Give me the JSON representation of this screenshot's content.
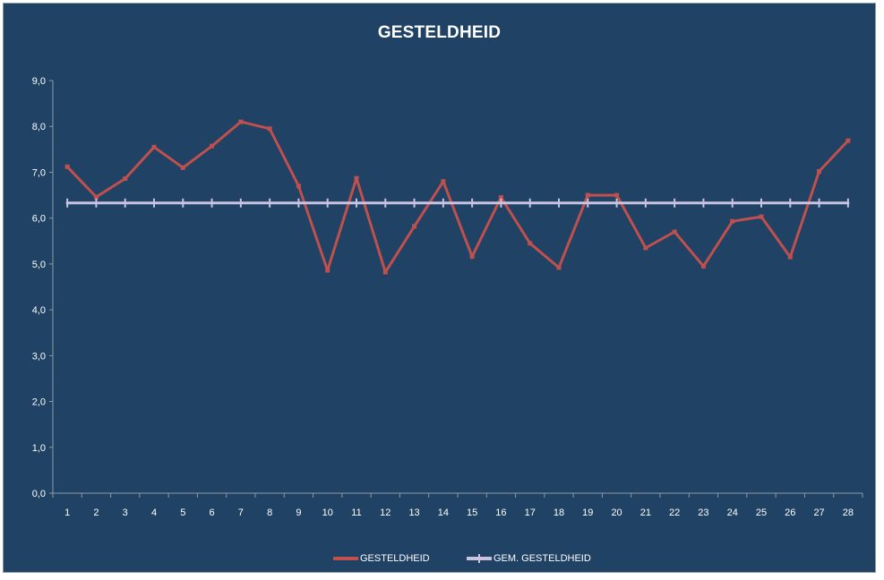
{
  "chart_data": {
    "type": "line",
    "title": "GESTELDHEID",
    "xlabel": "",
    "ylabel": "",
    "categories": [
      "1",
      "2",
      "3",
      "4",
      "5",
      "6",
      "7",
      "8",
      "9",
      "10",
      "11",
      "12",
      "13",
      "14",
      "15",
      "16",
      "17",
      "18",
      "19",
      "20",
      "21",
      "22",
      "23",
      "24",
      "25",
      "26",
      "27",
      "28"
    ],
    "y_ticks": [
      "0,0",
      "1,0",
      "2,0",
      "3,0",
      "4,0",
      "5,0",
      "6,0",
      "7,0",
      "8,0",
      "9,0"
    ],
    "ylim": [
      0,
      9
    ],
    "grid": false,
    "legend_position": "bottom",
    "series": [
      {
        "name": "GESTELDHEID",
        "color": "#c0504d",
        "values": [
          7.12,
          6.46,
          6.86,
          7.55,
          7.1,
          7.57,
          8.1,
          7.95,
          6.7,
          4.86,
          6.87,
          4.82,
          5.82,
          6.8,
          5.16,
          6.45,
          5.45,
          4.92,
          6.5,
          6.5,
          5.35,
          5.7,
          4.95,
          5.93,
          6.03,
          5.15,
          7.02,
          7.69
        ]
      },
      {
        "name": "GEM. GESTELDHEID",
        "color": "#c9c3e0",
        "values": [
          6.33,
          6.33,
          6.33,
          6.33,
          6.33,
          6.33,
          6.33,
          6.33,
          6.33,
          6.33,
          6.33,
          6.33,
          6.33,
          6.33,
          6.33,
          6.33,
          6.33,
          6.33,
          6.33,
          6.33,
          6.33,
          6.33,
          6.33,
          6.33,
          6.33,
          6.33,
          6.33,
          6.33
        ]
      }
    ]
  },
  "colors": {
    "background": "#1f4265",
    "axis": "#8e9aa6",
    "text": "#ffffff"
  }
}
